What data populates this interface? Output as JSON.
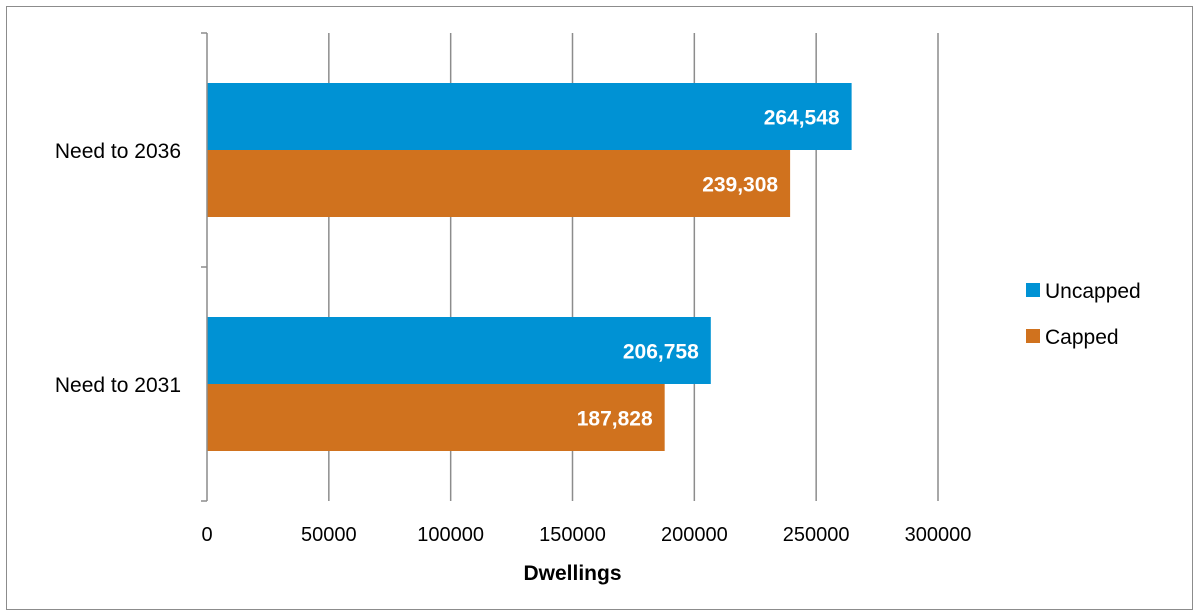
{
  "chart_data": {
    "type": "bar",
    "orientation": "horizontal",
    "categories": [
      "Need to 2036",
      "Need to 2031"
    ],
    "series": [
      {
        "name": "Uncapped",
        "color": "#0092d4",
        "values": [
          264548,
          206758
        ],
        "labels": [
          "264,548",
          "206,758"
        ]
      },
      {
        "name": "Capped",
        "color": "#d0721e",
        "values": [
          239308,
          187828
        ],
        "labels": [
          "239,308",
          "187,828"
        ]
      }
    ],
    "xlabel": "Dwellings",
    "ylabel": "",
    "xlim": [
      0,
      300000
    ],
    "xticks": [
      0,
      50000,
      100000,
      150000,
      200000,
      250000,
      300000
    ],
    "xtick_labels": [
      "0",
      "50000",
      "100000",
      "150000",
      "200000",
      "250000",
      "300000"
    ],
    "grid": "vertical",
    "legend_position": "right"
  }
}
